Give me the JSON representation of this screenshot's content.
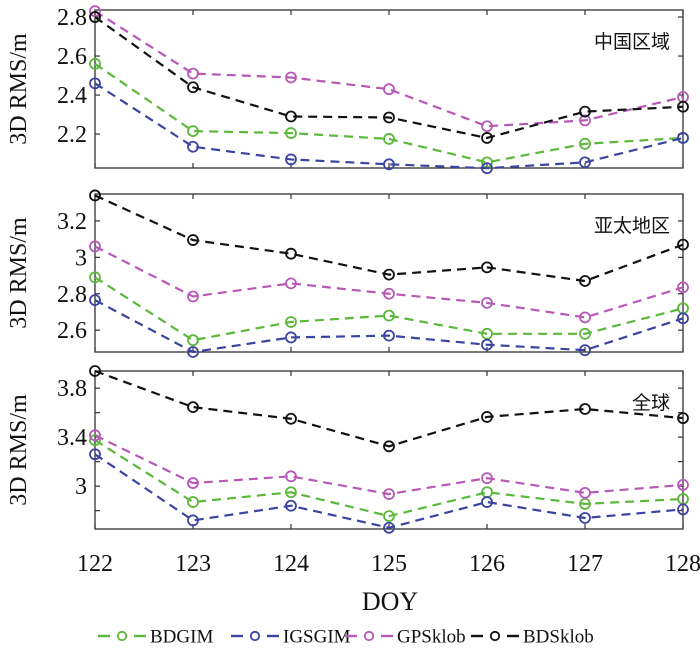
{
  "chart_data": {
    "type": "line",
    "x": [
      122,
      123,
      124,
      125,
      126,
      127,
      128
    ],
    "xlabel": "DOY",
    "xticks": [
      "122",
      "123",
      "124",
      "125",
      "126",
      "127",
      "128"
    ],
    "legend": {
      "placement": "bottom",
      "entries": [
        "BDGIM",
        "IGSGIM",
        "GPSklob",
        "BDSklob"
      ]
    },
    "series_styles": [
      {
        "name": "BDGIM",
        "color": "#5cb83a",
        "marker": "circle",
        "linestyle": "dashed"
      },
      {
        "name": "IGSGIM",
        "color": "#3b44a0",
        "marker": "circle",
        "linestyle": "dashed"
      },
      {
        "name": "GPSklob",
        "color": "#b858b8",
        "marker": "circle",
        "linestyle": "dashed"
      },
      {
        "name": "BDSklob",
        "color": "#111111",
        "marker": "circle",
        "linestyle": "dashed"
      }
    ],
    "panels": [
      {
        "title": "中国区域",
        "ylabel": "3D RMS/m",
        "ylim": [
          2.026,
          2.836
        ],
        "yticks": [
          2.2,
          2.4,
          2.6,
          2.8
        ],
        "yticklabels": [
          "2.2",
          "2.4",
          "2.6",
          "2.8"
        ],
        "yminor": [],
        "series": [
          {
            "name": "BDGIM",
            "values": [
              2.56,
              2.215,
              2.205,
              2.175,
              2.055,
              2.15,
              2.18
            ]
          },
          {
            "name": "IGSGIM",
            "values": [
              2.46,
              2.135,
              2.07,
              2.045,
              2.025,
              2.055,
              2.18
            ]
          },
          {
            "name": "GPSklob",
            "values": [
              2.83,
              2.51,
              2.49,
              2.43,
              2.24,
              2.27,
              2.39
            ]
          },
          {
            "name": "BDSklob",
            "values": [
              2.8,
              2.44,
              2.29,
              2.285,
              2.18,
              2.315,
              2.34
            ]
          }
        ]
      },
      {
        "title": "亚太地区",
        "ylabel": "3D RMS/m",
        "ylim": [
          2.48,
          3.348
        ],
        "yticks": [
          2.6,
          2.8,
          3.0,
          3.2
        ],
        "yticklabels": [
          "2.6",
          "2.8",
          "3",
          "3.2"
        ],
        "yminor": [],
        "series": [
          {
            "name": "BDGIM",
            "values": [
              2.89,
              2.545,
              2.645,
              2.68,
              2.58,
              2.58,
              2.72
            ]
          },
          {
            "name": "IGSGIM",
            "values": [
              2.765,
              2.48,
              2.56,
              2.57,
              2.52,
              2.49,
              2.665
            ]
          },
          {
            "name": "GPSklob",
            "values": [
              3.06,
              2.785,
              2.857,
              2.8,
              2.75,
              2.67,
              2.835
            ]
          },
          {
            "name": "BDSklob",
            "values": [
              3.34,
              3.095,
              3.02,
              2.905,
              2.945,
              2.87,
              3.07
            ]
          }
        ]
      },
      {
        "title": "全球",
        "ylabel": "3D RMS/m",
        "ylim": [
          2.65,
          3.94
        ],
        "yticks": [
          3.0,
          3.4,
          3.8
        ],
        "yticklabels": [
          "3",
          "3.4",
          "3.8"
        ],
        "yminor": [
          2.8,
          3.2,
          3.6
        ],
        "series": [
          {
            "name": "BDGIM",
            "values": [
              3.375,
              2.87,
              2.95,
              2.755,
              2.95,
              2.855,
              2.895
            ]
          },
          {
            "name": "IGSGIM",
            "values": [
              3.26,
              2.72,
              2.84,
              2.66,
              2.87,
              2.74,
              2.81
            ]
          },
          {
            "name": "GPSklob",
            "values": [
              3.415,
              3.025,
              3.08,
              2.935,
              3.065,
              2.945,
              3.01
            ]
          },
          {
            "name": "BDSklob",
            "values": [
              3.94,
              3.645,
              3.55,
              3.325,
              3.565,
              3.63,
              3.555
            ]
          }
        ]
      }
    ]
  }
}
